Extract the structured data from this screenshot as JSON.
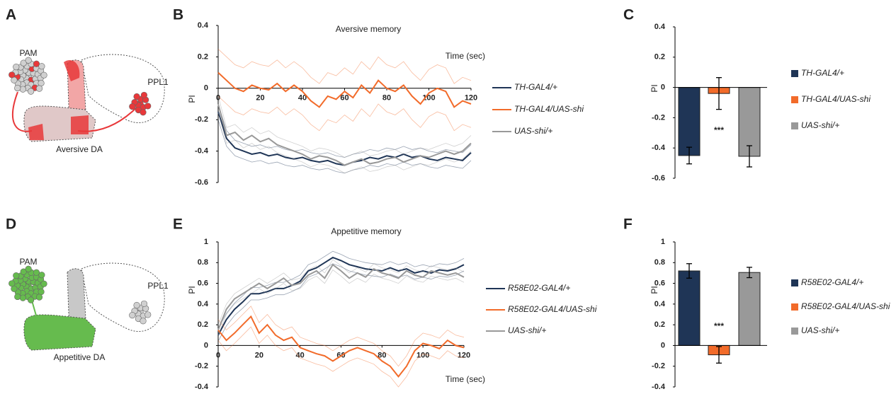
{
  "panel_labels": [
    "A",
    "B",
    "C",
    "D",
    "E",
    "F"
  ],
  "diagrams": [
    {
      "labels": [
        "PAM",
        "PPL1"
      ],
      "caption": "Aversive DA"
    },
    {
      "labels": [
        "PAM",
        "PPL1"
      ],
      "caption": "Appetitive DA"
    }
  ],
  "chart_data": [
    {
      "type": "line",
      "title": "Aversive memory",
      "xlabel": "Time (sec)",
      "ylabel": "PI",
      "x": [
        0,
        4,
        8,
        12,
        16,
        20,
        24,
        28,
        32,
        36,
        40,
        44,
        48,
        52,
        56,
        60,
        64,
        68,
        72,
        76,
        80,
        84,
        88,
        92,
        96,
        100,
        104,
        108,
        112,
        116,
        120
      ],
      "xlim": [
        0,
        120
      ],
      "xticks": [
        0,
        20,
        40,
        60,
        80,
        100,
        120
      ],
      "ylim": [
        -0.6,
        0.4
      ],
      "yticks": [
        -0.6,
        -0.4,
        -0.2,
        0,
        0.2,
        0.4
      ],
      "series": [
        {
          "name": "TH-GAL4/+",
          "color": "#1f3556",
          "error": 0.05,
          "values": [
            -0.15,
            -0.32,
            -0.38,
            -0.4,
            -0.42,
            -0.41,
            -0.43,
            -0.42,
            -0.44,
            -0.45,
            -0.44,
            -0.46,
            -0.47,
            -0.46,
            -0.48,
            -0.49,
            -0.47,
            -0.46,
            -0.44,
            -0.45,
            -0.43,
            -0.44,
            -0.42,
            -0.44,
            -0.43,
            -0.45,
            -0.46,
            -0.44,
            -0.45,
            -0.46,
            -0.41
          ]
        },
        {
          "name": "TH-GAL4/UAS-shi",
          "color": "#f26b2a",
          "error": 0.15,
          "values": [
            0.1,
            0.05,
            0.0,
            -0.02,
            0.02,
            0.0,
            -0.01,
            0.03,
            -0.02,
            0.02,
            -0.02,
            -0.08,
            -0.12,
            -0.05,
            -0.07,
            -0.02,
            -0.06,
            0.02,
            -0.03,
            0.05,
            0.0,
            -0.02,
            0.02,
            -0.05,
            -0.1,
            -0.03,
            0.0,
            -0.02,
            -0.12,
            -0.08,
            -0.1
          ]
        },
        {
          "name": "UAS-shi/+",
          "color": "#999999",
          "error": 0.05,
          "values": [
            -0.1,
            -0.3,
            -0.28,
            -0.33,
            -0.3,
            -0.34,
            -0.32,
            -0.36,
            -0.38,
            -0.4,
            -0.42,
            -0.45,
            -0.43,
            -0.44,
            -0.46,
            -0.49,
            -0.47,
            -0.45,
            -0.48,
            -0.47,
            -0.45,
            -0.44,
            -0.47,
            -0.45,
            -0.43,
            -0.44,
            -0.42,
            -0.4,
            -0.42,
            -0.4,
            -0.35
          ]
        }
      ]
    },
    {
      "type": "bar",
      "ylabel": "PI",
      "ylim": [
        -0.6,
        0.4
      ],
      "yticks": [
        -0.6,
        -0.4,
        -0.2,
        0,
        0.2,
        0.4
      ],
      "annotation": "***",
      "series": [
        {
          "name": "TH-GAL4/+",
          "color": "#1f3556",
          "values": [
            -0.45
          ],
          "errors": [
            0.055
          ]
        },
        {
          "name": "TH-GAL4/UAS-shi",
          "color": "#f26b2a",
          "values": [
            -0.04
          ],
          "errors": [
            0.105
          ]
        },
        {
          "name": "UAS-shi/+",
          "color": "#999999",
          "values": [
            -0.455
          ],
          "errors": [
            0.07
          ]
        }
      ]
    },
    {
      "type": "line",
      "title": "Appetitive memory",
      "xlabel": "Time (sec)",
      "ylabel": "PI",
      "x": [
        0,
        4,
        8,
        12,
        16,
        20,
        24,
        28,
        32,
        36,
        40,
        44,
        48,
        52,
        56,
        60,
        64,
        68,
        72,
        76,
        80,
        84,
        88,
        92,
        96,
        100,
        104,
        108,
        112,
        116,
        120
      ],
      "xlim": [
        0,
        120
      ],
      "xticks": [
        0,
        20,
        40,
        60,
        80,
        100,
        120
      ],
      "ylim": [
        -0.4,
        1
      ],
      "yticks": [
        -0.4,
        -0.2,
        0,
        0.2,
        0.4,
        0.6,
        0.8,
        1
      ],
      "series": [
        {
          "name": "R58E02-GAL4/+",
          "color": "#1f3556",
          "error": 0.06,
          "values": [
            0.1,
            0.25,
            0.35,
            0.42,
            0.5,
            0.5,
            0.52,
            0.55,
            0.55,
            0.58,
            0.62,
            0.72,
            0.75,
            0.8,
            0.85,
            0.82,
            0.78,
            0.76,
            0.74,
            0.73,
            0.72,
            0.75,
            0.72,
            0.74,
            0.7,
            0.72,
            0.7,
            0.73,
            0.72,
            0.74,
            0.78
          ]
        },
        {
          "name": "R58E02-GAL4/UAS-shi",
          "color": "#f26b2a",
          "error": 0.1,
          "values": [
            0.15,
            0.05,
            0.12,
            0.2,
            0.28,
            0.12,
            0.2,
            0.1,
            0.05,
            0.08,
            -0.02,
            -0.05,
            -0.08,
            -0.1,
            -0.15,
            -0.1,
            -0.05,
            -0.02,
            -0.05,
            -0.08,
            -0.15,
            -0.2,
            -0.3,
            -0.2,
            -0.05,
            0.02,
            0.0,
            -0.03,
            0.05,
            0.0,
            -0.02
          ]
        },
        {
          "name": "UAS-shi/+",
          "color": "#999999",
          "error": 0.05,
          "values": [
            0.15,
            0.35,
            0.45,
            0.5,
            0.55,
            0.6,
            0.55,
            0.6,
            0.65,
            0.58,
            0.6,
            0.68,
            0.72,
            0.65,
            0.78,
            0.72,
            0.65,
            0.7,
            0.66,
            0.74,
            0.7,
            0.68,
            0.65,
            0.72,
            0.68,
            0.66,
            0.72,
            0.7,
            0.68,
            0.7,
            0.66
          ]
        }
      ]
    },
    {
      "type": "bar",
      "ylabel": "PI",
      "ylim": [
        -0.4,
        1
      ],
      "yticks": [
        -0.4,
        -0.2,
        0,
        0.2,
        0.4,
        0.6,
        0.8,
        1
      ],
      "annotation": "***",
      "series": [
        {
          "name": "R58E02-GAL4/+",
          "color": "#1f3556",
          "values": [
            0.72
          ],
          "errors": [
            0.07
          ]
        },
        {
          "name": "R58E02-GAL4/UAS-shi",
          "color": "#f26b2a",
          "values": [
            -0.09
          ],
          "errors": [
            0.08
          ]
        },
        {
          "name": "UAS-shi/+",
          "color": "#999999",
          "values": [
            0.705
          ],
          "errors": [
            0.05
          ]
        }
      ]
    }
  ]
}
